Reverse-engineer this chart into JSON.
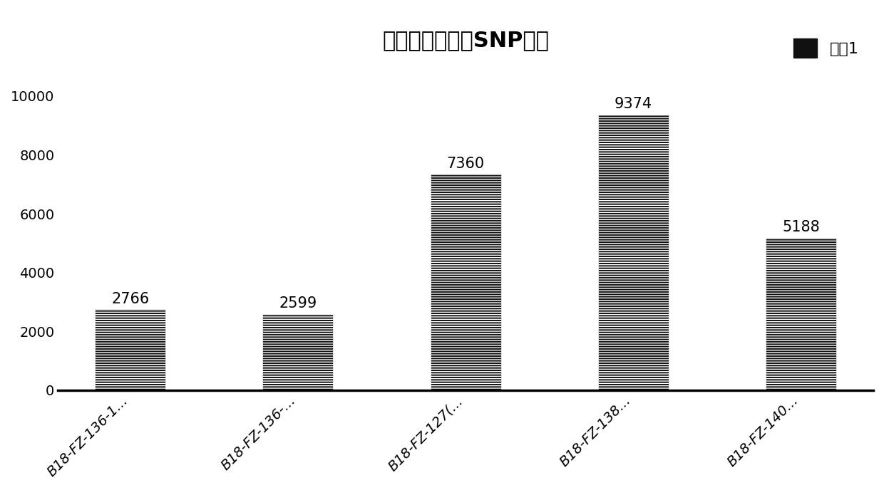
{
  "title": "不同样本间差异SNP数量",
  "categories": [
    "B18-FZ-136-1...",
    "B18-FZ-136-...",
    "B18-FZ-127(...",
    "B18-FZ-138...",
    "B18-FZ-140..."
  ],
  "values": [
    2766,
    2599,
    7360,
    9374,
    5188
  ],
  "bar_color": "#111111",
  "hatch_color": "#ffffff",
  "ylim": [
    0,
    11000
  ],
  "yticks": [
    0,
    2000,
    4000,
    6000,
    8000,
    10000
  ],
  "legend_label": "系列1",
  "title_fontsize": 22,
  "label_fontsize": 16,
  "tick_fontsize": 14,
  "annotation_fontsize": 15,
  "background_color": "#ffffff",
  "bar_width": 0.42
}
